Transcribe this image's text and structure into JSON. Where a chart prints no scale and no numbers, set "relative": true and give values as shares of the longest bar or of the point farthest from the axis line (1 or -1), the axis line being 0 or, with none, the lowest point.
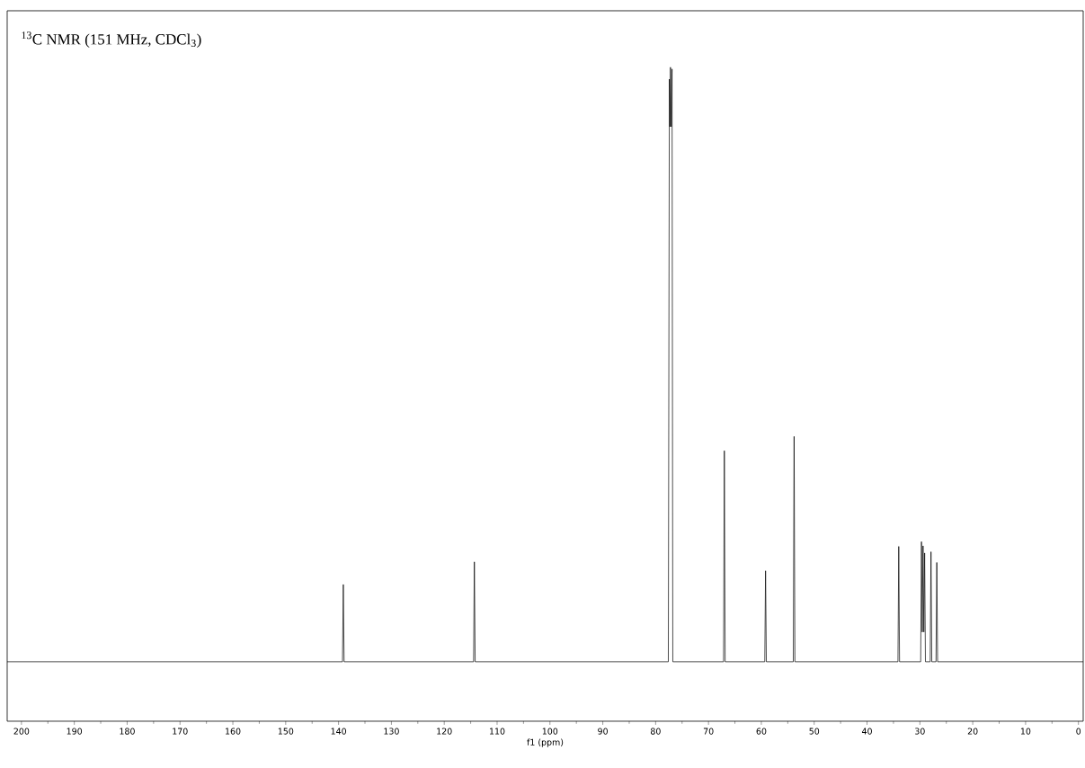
{
  "chart_data": {
    "type": "line",
    "xlabel": "f1 (ppm)",
    "relative": true,
    "annotations": [
      "$^{13}$C NMR (151 MHz, CDCl$_{3}$)"
    ],
    "x": [
      202.7,
      139.25,
      139.1,
      138.95,
      114.45,
      114.3,
      114.15,
      77.6,
      77.4,
      77.3,
      77.2,
      77.05,
      76.9,
      76.75,
      67.15,
      67.0,
      66.85,
      59.35,
      59.2,
      59.05,
      53.95,
      53.8,
      53.65,
      34.15,
      34.0,
      33.85,
      29.85,
      29.7,
      29.55,
      29.4,
      29.25,
      29.1,
      28.95,
      28.05,
      27.9,
      27.75,
      26.95,
      26.8,
      26.65,
      -0.9
    ],
    "series": [
      {
        "color": "#000000",
        "values": [
          0,
          0,
          0.13,
          0,
          0,
          0.168,
          0,
          0,
          0.98,
          0.9,
          1.0,
          0.9,
          0.997,
          0,
          0,
          0.355,
          0,
          0,
          0.153,
          0,
          0,
          0.379,
          0,
          0,
          0.194,
          0,
          0,
          0.202,
          0.05,
          0.195,
          0.05,
          0.183,
          0,
          0,
          0.185,
          0,
          0,
          0.167,
          0,
          0
        ]
      }
    ],
    "xlim": [
      202.7,
      -0.9
    ],
    "xticks": [
      200,
      190,
      180,
      170,
      160,
      150,
      140,
      130,
      120,
      110,
      100,
      90,
      80,
      70,
      60,
      50,
      40,
      30,
      20,
      10,
      0
    ],
    "grid": false,
    "marker": "none",
    "line_style": "solid"
  }
}
